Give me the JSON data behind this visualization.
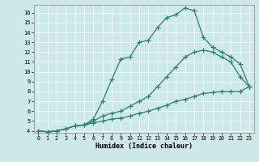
{
  "xlabel": "Humidex (Indice chaleur)",
  "bg_color": "#cce8e8",
  "line_color": "#2e7d6e",
  "xlim": [
    -0.5,
    23.5
  ],
  "ylim": [
    3.8,
    16.8
  ],
  "xticks": [
    0,
    1,
    2,
    3,
    4,
    5,
    6,
    7,
    8,
    9,
    10,
    11,
    12,
    13,
    14,
    15,
    16,
    17,
    18,
    19,
    20,
    21,
    22,
    23
  ],
  "yticks": [
    4,
    5,
    6,
    7,
    8,
    9,
    10,
    11,
    12,
    13,
    14,
    15,
    16
  ],
  "series1_x": [
    0,
    1,
    2,
    3,
    4,
    5,
    6,
    7,
    8,
    9,
    10,
    11,
    12,
    13,
    14,
    15,
    16,
    17,
    18,
    19,
    20,
    21,
    22,
    23
  ],
  "series1_y": [
    4.0,
    3.9,
    4.0,
    4.2,
    4.5,
    4.6,
    5.2,
    7.0,
    9.2,
    11.3,
    11.5,
    13.0,
    13.2,
    14.5,
    15.5,
    15.8,
    16.5,
    16.2,
    13.5,
    12.5,
    12.0,
    11.5,
    10.8,
    8.5
  ],
  "series2_x": [
    0,
    1,
    2,
    3,
    4,
    5,
    6,
    7,
    8,
    9,
    10,
    11,
    12,
    13,
    14,
    15,
    16,
    17,
    18,
    19,
    20,
    21,
    22,
    23
  ],
  "series2_y": [
    4.0,
    3.9,
    4.0,
    4.2,
    4.5,
    4.6,
    5.0,
    5.5,
    5.8,
    6.0,
    6.5,
    7.0,
    7.5,
    8.5,
    9.5,
    10.5,
    11.5,
    12.0,
    12.2,
    12.0,
    11.5,
    11.0,
    9.5,
    8.5
  ],
  "series3_x": [
    0,
    1,
    2,
    3,
    4,
    5,
    6,
    7,
    8,
    9,
    10,
    11,
    12,
    13,
    14,
    15,
    16,
    17,
    18,
    19,
    20,
    21,
    22,
    23
  ],
  "series3_y": [
    4.0,
    3.9,
    4.0,
    4.2,
    4.5,
    4.6,
    4.8,
    5.0,
    5.2,
    5.3,
    5.5,
    5.8,
    6.0,
    6.3,
    6.6,
    7.0,
    7.2,
    7.5,
    7.8,
    7.9,
    8.0,
    8.0,
    8.0,
    8.5
  ]
}
